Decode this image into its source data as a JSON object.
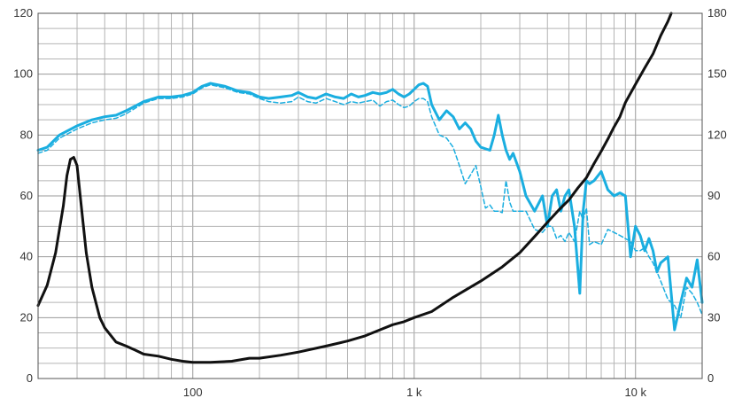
{
  "chart_data": {
    "type": "line",
    "title": "",
    "xlabel": "",
    "ylabel": "",
    "y2label": "",
    "x_scale": "log",
    "xlim": [
      20,
      20000
    ],
    "ylim": [
      0,
      120
    ],
    "y2lim": [
      0,
      180
    ],
    "grid": true,
    "x_tick_labels": [
      {
        "value": 100,
        "label": "100"
      },
      {
        "value": 1000,
        "label": "1 k"
      },
      {
        "value": 10000,
        "label": "10 k"
      }
    ],
    "y_ticks": [
      0,
      20,
      40,
      60,
      80,
      100,
      120
    ],
    "y2_ticks": [
      0,
      30,
      60,
      90,
      120,
      150,
      180
    ],
    "series": [
      {
        "axis": "left",
        "style": "solid",
        "color": "#1aaee0",
        "x": [
          20,
          22,
          25,
          30,
          35,
          40,
          45,
          50,
          60,
          70,
          80,
          90,
          100,
          110,
          120,
          140,
          160,
          180,
          200,
          220,
          250,
          280,
          300,
          330,
          360,
          400,
          440,
          480,
          520,
          560,
          600,
          650,
          700,
          750,
          800,
          850,
          900,
          950,
          1000,
          1050,
          1100,
          1150,
          1200,
          1300,
          1400,
          1500,
          1600,
          1700,
          1800,
          1900,
          2000,
          2200,
          2300,
          2400,
          2500,
          2600,
          2700,
          2800,
          3000,
          3200,
          3500,
          3800,
          4000,
          4200,
          4400,
          4600,
          4800,
          5000,
          5300,
          5600,
          5800,
          6000,
          6200,
          6500,
          7000,
          7500,
          8000,
          8500,
          9000,
          9500,
          10000,
          10500,
          11000,
          11500,
          12000,
          12500,
          13000,
          14000,
          15000,
          16000,
          17000,
          18000,
          19000,
          20000
        ],
        "y": [
          75,
          76,
          80,
          83,
          85,
          86,
          86.5,
          88,
          91,
          92.5,
          92.5,
          93,
          94,
          96,
          97,
          96,
          94.5,
          94,
          92.5,
          92,
          92.5,
          93,
          94,
          92.5,
          92,
          93.5,
          92.5,
          92,
          93.5,
          92.5,
          93,
          94,
          93.5,
          94,
          95,
          93.5,
          92.5,
          93.5,
          95,
          96.5,
          97,
          96,
          90,
          85,
          88,
          86,
          82,
          84,
          82,
          78,
          76,
          75,
          80,
          86.5,
          80,
          75,
          72,
          74,
          68,
          60,
          55,
          60,
          50,
          60,
          62,
          55,
          60,
          62,
          50,
          28,
          55,
          65,
          64,
          65,
          68,
          62,
          60,
          61,
          60,
          40,
          50,
          47,
          42,
          46,
          42,
          35,
          38,
          40,
          16,
          25,
          33,
          30,
          39,
          25
        ]
      },
      {
        "axis": "left",
        "style": "dashed",
        "color": "#1aaee0",
        "x": [
          20,
          22,
          25,
          30,
          35,
          40,
          45,
          50,
          60,
          70,
          80,
          90,
          100,
          110,
          120,
          140,
          160,
          180,
          200,
          220,
          250,
          280,
          300,
          330,
          360,
          400,
          440,
          480,
          520,
          560,
          600,
          650,
          700,
          750,
          800,
          850,
          900,
          950,
          1000,
          1050,
          1100,
          1150,
          1200,
          1300,
          1400,
          1500,
          1600,
          1700,
          1800,
          1900,
          2000,
          2100,
          2200,
          2300,
          2400,
          2500,
          2600,
          2700,
          2800,
          3000,
          3200,
          3500,
          3800,
          4000,
          4200,
          4400,
          4600,
          4800,
          5000,
          5300,
          5600,
          5800,
          6000,
          6200,
          6500,
          7000,
          7500,
          8000,
          8500,
          9000,
          9500,
          10000,
          10500,
          11000,
          11500,
          12000,
          12500,
          13000,
          14000,
          15000,
          16000,
          17000,
          18000,
          19000,
          20000
        ],
        "y": [
          74,
          75,
          79,
          82,
          84,
          85,
          85.5,
          87,
          90.5,
          92,
          92,
          92.5,
          93.5,
          95.5,
          96.5,
          95.5,
          94,
          93.5,
          92,
          91,
          90.5,
          91,
          92.5,
          91,
          90.5,
          92,
          91,
          90,
          91,
          90.5,
          91,
          91.5,
          89.5,
          91,
          91.5,
          90,
          89,
          89.5,
          91,
          92,
          92,
          91,
          86,
          80,
          79,
          76,
          70,
          64,
          67,
          70,
          63,
          56,
          57,
          55,
          55,
          54.5,
          65,
          58,
          55,
          55,
          55,
          49,
          48,
          50,
          50,
          46,
          47,
          45,
          48,
          45,
          55,
          52,
          56,
          44,
          45,
          44,
          49,
          48,
          47,
          46,
          45,
          42,
          42,
          43,
          40,
          38,
          35,
          32,
          26,
          24,
          20,
          30,
          28,
          25,
          21
        ]
      },
      {
        "axis": "right",
        "style": "solid",
        "color": "#111111",
        "x": [
          20,
          22,
          24,
          26,
          27,
          28,
          29,
          30,
          31,
          33,
          35,
          38,
          40,
          45,
          50,
          55,
          60,
          70,
          80,
          90,
          100,
          120,
          150,
          180,
          200,
          250,
          300,
          400,
          500,
          600,
          700,
          800,
          900,
          1000,
          1200,
          1500,
          2000,
          2500,
          3000,
          3500,
          4000,
          4500,
          5000,
          5500,
          6000,
          6500,
          7000,
          7500,
          8000,
          8500,
          9000,
          10000,
          11000,
          12000,
          13000,
          14000,
          14500
        ],
        "y": [
          36,
          46,
          62,
          85,
          100,
          108,
          109,
          105,
          90,
          62,
          45,
          30,
          25,
          18,
          16,
          14,
          12,
          11,
          9.5,
          8.5,
          8,
          8,
          8.5,
          10,
          10,
          11.5,
          13,
          16,
          18.5,
          21,
          24,
          26.5,
          28,
          30,
          33,
          40,
          48,
          55,
          62,
          70,
          77,
          83,
          88,
          94,
          99,
          106,
          112,
          118,
          124,
          129,
          136,
          145,
          153,
          160,
          169,
          176,
          180
        ]
      }
    ]
  }
}
